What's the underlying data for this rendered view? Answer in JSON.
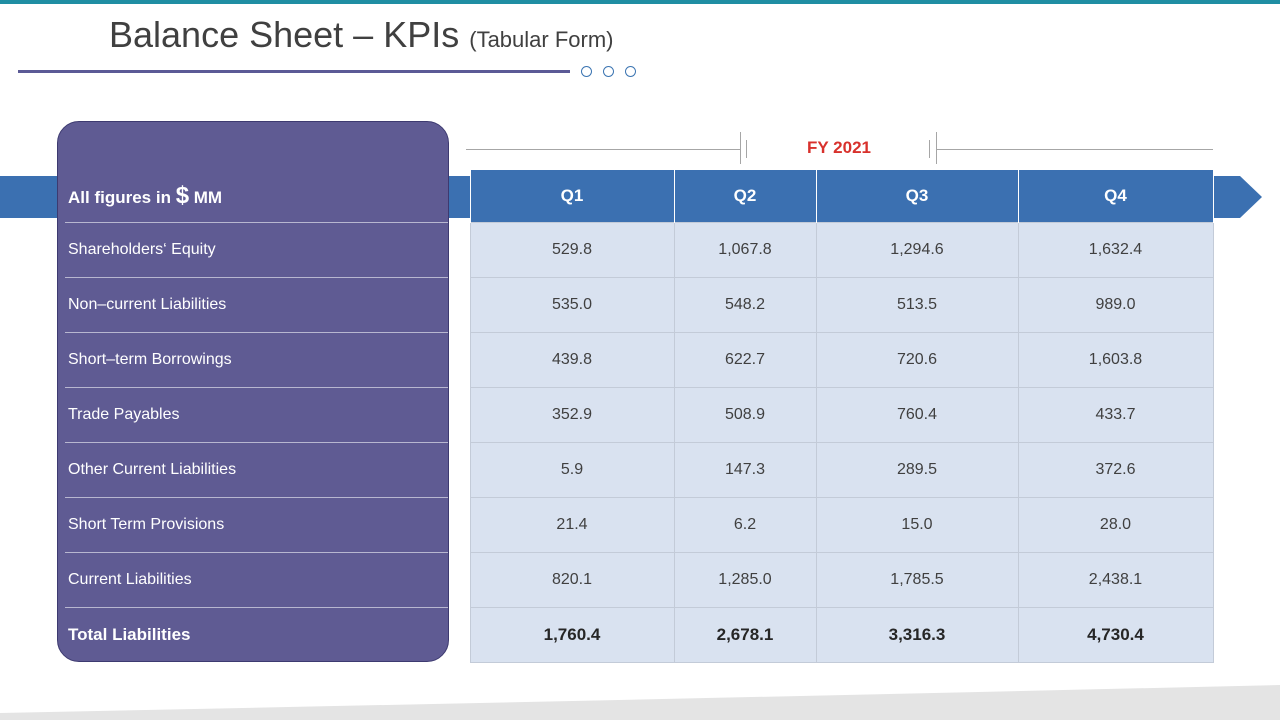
{
  "slide": {
    "title": "Balance Sheet – KPIs",
    "title_suffix": "(Tabular Form)"
  },
  "table": {
    "period_label": "FY  2021",
    "header_prefix": "All figures in ",
    "header_currency": "$",
    "header_unit": " MM",
    "columns": [
      "Q1",
      "Q2",
      "Q3",
      "Q4"
    ],
    "rows": [
      {
        "label": "Shareholders‘ Equity",
        "values": [
          "529.8",
          "1,067.8",
          "1,294.6",
          "1,632.4"
        ]
      },
      {
        "label": "Non–current Liabilities",
        "values": [
          "535.0",
          "548.2",
          "513.5",
          "989.0"
        ]
      },
      {
        "label": "Short–term Borrowings",
        "values": [
          "439.8",
          "622.7",
          "720.6",
          "1,603.8"
        ]
      },
      {
        "label": "Trade Payables",
        "values": [
          "352.9",
          "508.9",
          "760.4",
          "433.7"
        ]
      },
      {
        "label": "Other Current Liabilities",
        "values": [
          "5.9",
          "147.3",
          "289.5",
          "372.6"
        ]
      },
      {
        "label": "Short Term Provisions",
        "values": [
          "21.4",
          "6.2",
          "15.0",
          "28.0"
        ]
      },
      {
        "label": "Current Liabilities",
        "values": [
          "820.1",
          "1,285.0",
          "1,785.5",
          "2,438.1"
        ]
      }
    ],
    "total": {
      "label": "Total  Liabilities",
      "values": [
        "1,760.4",
        "2,678.1",
        "3,316.3",
        "4,730.4"
      ]
    }
  },
  "colors": {
    "accent_teal": "#1f8ea3",
    "panel_purple": "#5f5b93",
    "header_blue": "#3b70b1",
    "cell_fill": "#d9e2f0",
    "fy_red": "#d8312c"
  }
}
